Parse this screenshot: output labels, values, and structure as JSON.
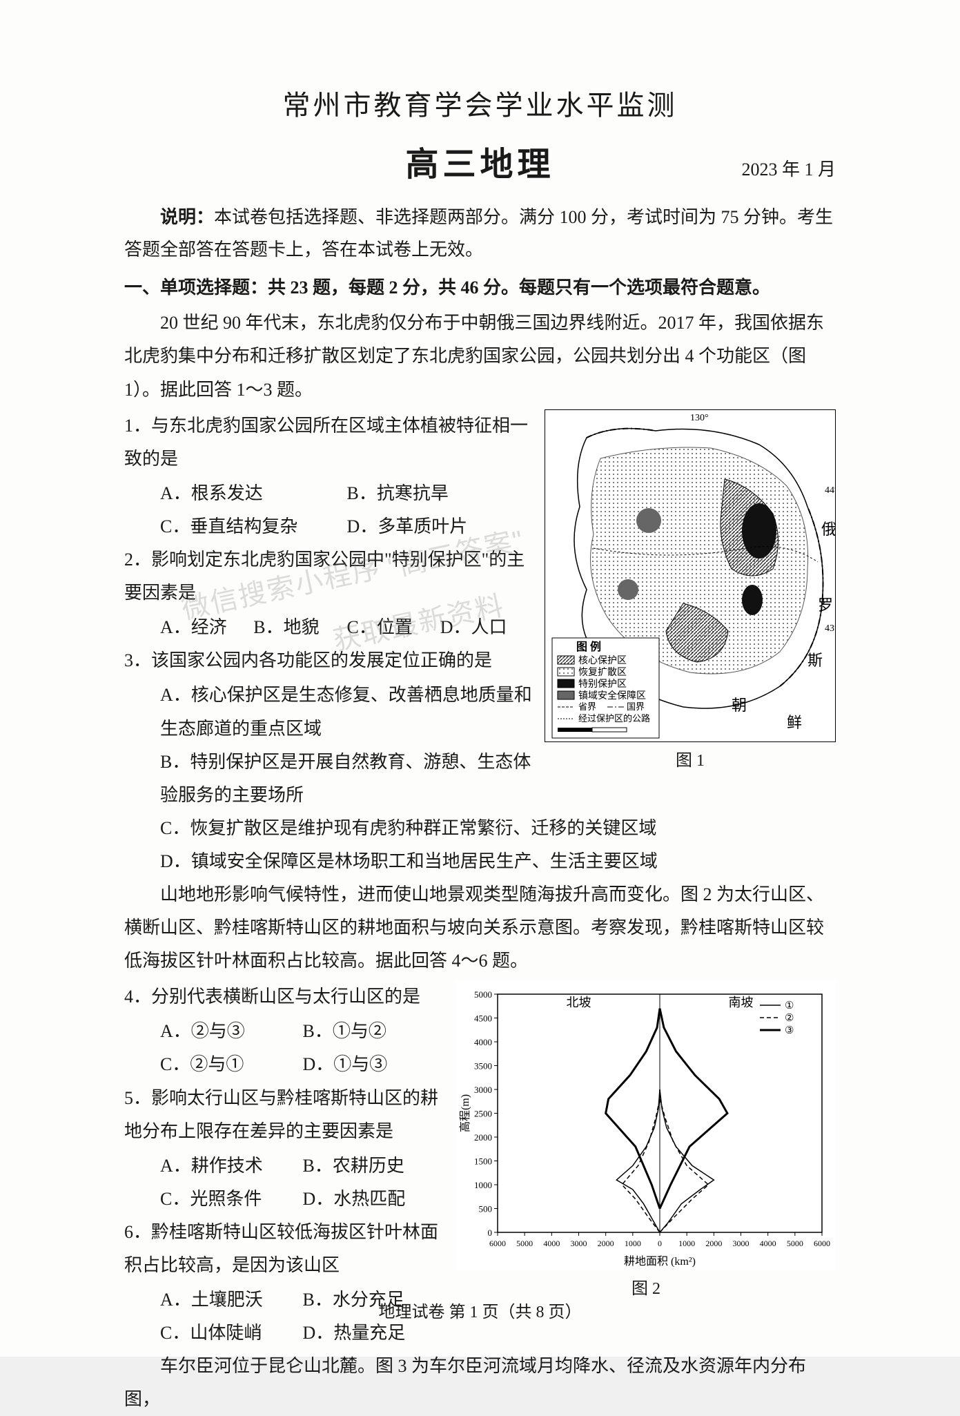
{
  "header": {
    "title": "常州市教育学会学业水平监测",
    "subtitle": "高三地理",
    "date": "2023 年 1 月"
  },
  "instructions": {
    "label": "说明：",
    "text": "本试卷包括选择题、非选择题两部分。满分 100 分，考试时间为 75 分钟。考生答题全部答在答题卡上，答在本试卷上无效。"
  },
  "section1": {
    "header": "一、单项选择题：共 23 题，每题 2 分，共 46 分。每题只有一个选项最符合题意。"
  },
  "passage1": "20 世纪 90 年代末，东北虎豹仅分布于中朝俄三国边界线附近。2017 年，我国依据东北虎豹集中分布和迁移扩散区划定了东北虎豹国家公园，公园共划分出 4 个功能区（图 1）。据此回答 1～3 题。",
  "q1": {
    "stem": "1．与东北虎豹国家公园所在区域主体植被特征相一致的是",
    "A": "A．根系发达",
    "B": "B．抗寒抗旱",
    "C": "C．垂直结构复杂",
    "D": "D．多革质叶片"
  },
  "q2": {
    "stem": "2．影响划定东北虎豹国家公园中\"特别保护区\"的主要因素是",
    "A": "A．经济",
    "B": "B．地貌",
    "C": "C．位置",
    "D": "D．人口"
  },
  "q3": {
    "stem": "3．该国家公园内各功能区的发展定位正确的是",
    "A": "A．核心保护区是生态修复、改善栖息地质量和生态廊道的重点区域",
    "B": "B．特别保护区是开展自然教育、游憩、生态体验服务的主要场所",
    "C": "C．恢复扩散区是维护现有虎豹种群正常繁衍、迁移的关键区域",
    "D": "D．镇域安全保障区是林场职工和当地居民生产、生活主要区域"
  },
  "passage2": "山地地形影响气候特性，进而使山地景观类型随海拔升高而变化。图 2 为太行山区、横断山区、黔桂喀斯特山区的耕地面积与坡向关系示意图。考察发现，黔桂喀斯特山区较低海拔区针叶林面积占比较高。据此回答 4～6 题。",
  "q4": {
    "stem": "4．分别代表横断山区与太行山区的是",
    "A": "A．②与③",
    "B": "B．①与②",
    "C": "C．②与①",
    "D": "D．①与③"
  },
  "q5": {
    "stem": "5．影响太行山区与黔桂喀斯特山区的耕地分布上限存在差异的主要因素是",
    "A": "A．耕作技术",
    "B": "B．农耕历史",
    "C": "C．光照条件",
    "D": "D．水热匹配"
  },
  "q6": {
    "stem": "6．黔桂喀斯特山区较低海拔区针叶林面积占比较高，是因为该山区",
    "A": "A．土壤肥沃",
    "B": "B．水分充足",
    "C": "C．山体陡峭",
    "D": "D．热量充足"
  },
  "passage3": "车尔臣河位于昆仑山北麓。图 3 为车尔臣河流域月均降水、径流及水资源年内分布图，",
  "fig1": {
    "caption": "图 1",
    "legend_title": "图 例",
    "legend": {
      "core": "核心保护区",
      "recovery": "恢复扩散区",
      "special": "特别保护区",
      "town": "镇域安全保障区",
      "prov_border": "省界",
      "nat_border": "国界",
      "road": "经过保护区的公路"
    },
    "labels": {
      "russia": "俄",
      "luo": "罗",
      "si": "斯",
      "chao": "朝",
      "xian": "鲜",
      "lon": "130°",
      "lat1": "44°",
      "lat2": "43°"
    },
    "colors": {
      "core": "#555555",
      "recovery": "#bbbbbb",
      "special": "#222222",
      "town": "#888888",
      "border": "#000000",
      "bg": "#ffffff"
    }
  },
  "fig2": {
    "caption": "图 2",
    "legend": {
      "s1": "①",
      "s2": "②",
      "s3": "③"
    },
    "labels": {
      "north": "北坡",
      "south": "南坡",
      "y_axis": "高程(m)",
      "x_axis": "耕地面积 (km²)"
    },
    "y_ticks": [
      "0",
      "500",
      "1000",
      "1500",
      "2000",
      "2500",
      "3000",
      "3500",
      "4000",
      "4500",
      "5000"
    ],
    "x_ticks_left": [
      "6000",
      "5000",
      "4000",
      "3000",
      "2000",
      "1000",
      "0"
    ],
    "x_ticks_right": [
      "1000",
      "2000",
      "3000",
      "4000",
      "5000",
      "6000"
    ],
    "colors": {
      "axis": "#000000",
      "s1": "#000000",
      "s2": "#000000",
      "s3": "#000000",
      "bg": "#ffffff"
    },
    "style": {
      "s1_dash": "none",
      "s2_dash": "6,4",
      "s3_dash": "none",
      "s3_width": 3,
      "s1_width": 1.5,
      "s2_width": 1.5
    },
    "series1_north": [
      [
        0,
        0
      ],
      [
        200,
        200
      ],
      [
        600,
        600
      ],
      [
        1000,
        900
      ],
      [
        1600,
        1100
      ],
      [
        1000,
        1400
      ],
      [
        500,
        1800
      ],
      [
        200,
        2200
      ],
      [
        50,
        2600
      ],
      [
        0,
        3000
      ]
    ],
    "series1_south": [
      [
        0,
        0
      ],
      [
        300,
        200
      ],
      [
        800,
        600
      ],
      [
        1500,
        900
      ],
      [
        2000,
        1100
      ],
      [
        1200,
        1400
      ],
      [
        600,
        1800
      ],
      [
        250,
        2200
      ],
      [
        80,
        2600
      ],
      [
        0,
        3000
      ]
    ],
    "series2_north": [
      [
        0,
        0
      ],
      [
        400,
        300
      ],
      [
        900,
        700
      ],
      [
        1400,
        1000
      ],
      [
        800,
        1400
      ],
      [
        400,
        1900
      ],
      [
        150,
        2400
      ],
      [
        0,
        2800
      ]
    ],
    "series2_south": [
      [
        0,
        0
      ],
      [
        500,
        300
      ],
      [
        1200,
        700
      ],
      [
        1800,
        1000
      ],
      [
        1000,
        1400
      ],
      [
        500,
        1900
      ],
      [
        200,
        2400
      ],
      [
        0,
        2800
      ]
    ],
    "series3_north": [
      [
        0,
        500
      ],
      [
        300,
        1000
      ],
      [
        900,
        1800
      ],
      [
        2000,
        2500
      ],
      [
        1900,
        2800
      ],
      [
        1100,
        3300
      ],
      [
        500,
        3800
      ],
      [
        100,
        4300
      ],
      [
        0,
        4700
      ]
    ],
    "series3_south": [
      [
        0,
        500
      ],
      [
        400,
        1000
      ],
      [
        1100,
        1800
      ],
      [
        2500,
        2500
      ],
      [
        2200,
        2800
      ],
      [
        1300,
        3300
      ],
      [
        600,
        3800
      ],
      [
        150,
        4300
      ],
      [
        0,
        4700
      ]
    ]
  },
  "footer": "地理试卷 第 1 页（共 8 页）",
  "watermark1": "微信搜索小程序",
  "watermark2": "\"高三答案\"",
  "watermark3": "获取最新资料"
}
